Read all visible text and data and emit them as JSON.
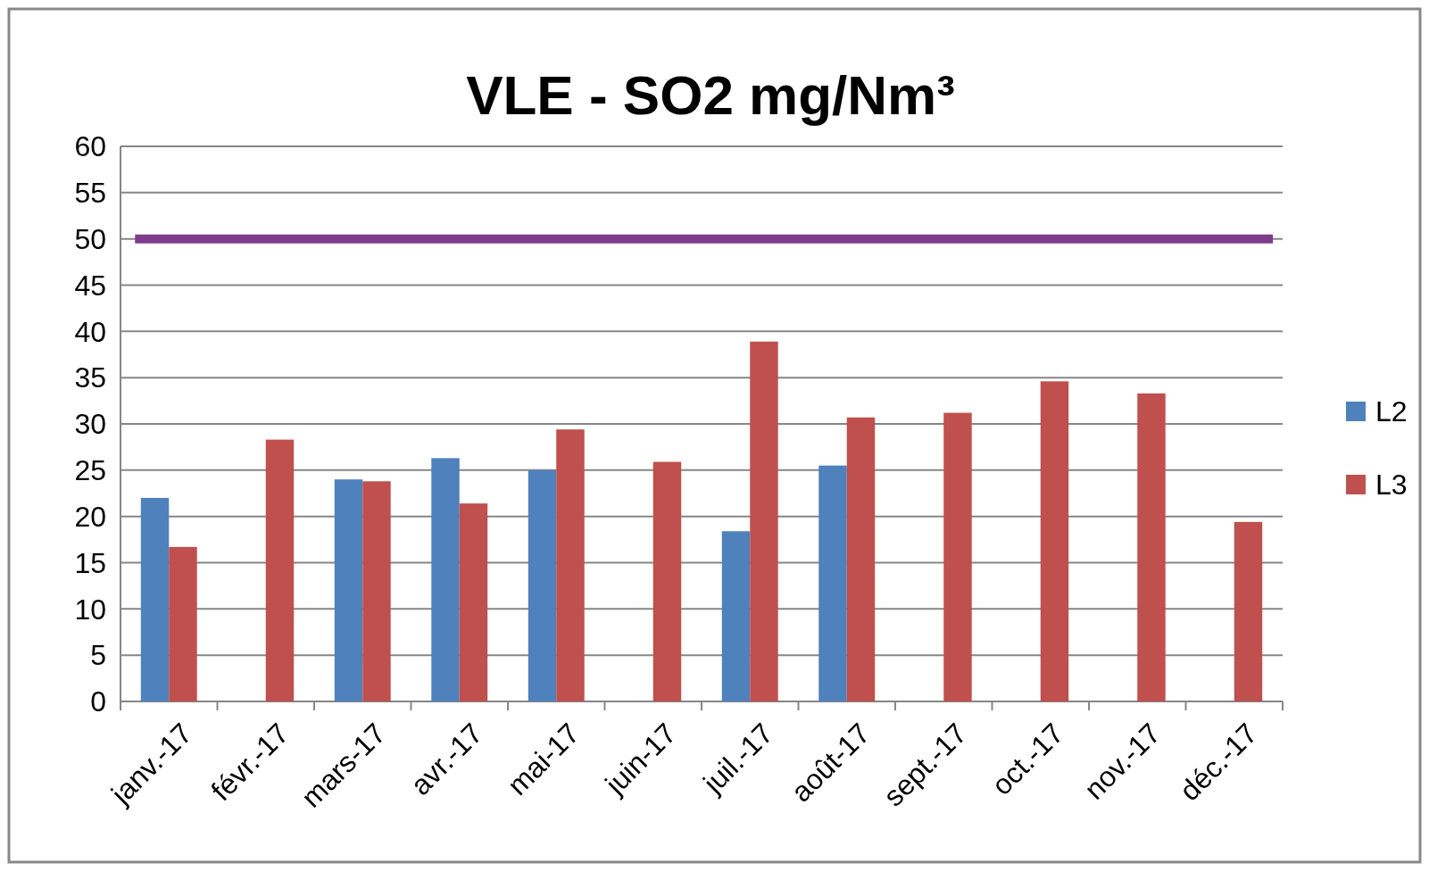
{
  "chart_data": {
    "type": "bar",
    "title": "VLE - SO2 mg/Nm³",
    "categories": [
      "janv.-17",
      "févr.-17",
      "mars-17",
      "avr.-17",
      "mai-17",
      "juin-17",
      "juil.-17",
      "août-17",
      "sept.-17",
      "oct.-17",
      "nov.-17",
      "déc.-17"
    ],
    "series": [
      {
        "name": "L2",
        "color": "#4f81bd",
        "values": [
          22.0,
          null,
          24.0,
          26.3,
          25.0,
          null,
          18.4,
          25.5,
          null,
          null,
          null,
          null
        ]
      },
      {
        "name": "L3",
        "color": "#c0504d",
        "values": [
          16.7,
          28.3,
          23.8,
          21.4,
          29.4,
          25.9,
          38.9,
          30.7,
          31.2,
          34.6,
          33.3,
          19.4
        ]
      }
    ],
    "ref_lines": [
      {
        "axis": "y",
        "value": 50,
        "color": "#7d3c8c"
      }
    ],
    "ylim": [
      0,
      60
    ],
    "yticks": [
      0,
      5,
      10,
      15,
      20,
      25,
      30,
      35,
      40,
      45,
      50,
      55,
      60
    ],
    "grid": "y",
    "legend": "right"
  }
}
